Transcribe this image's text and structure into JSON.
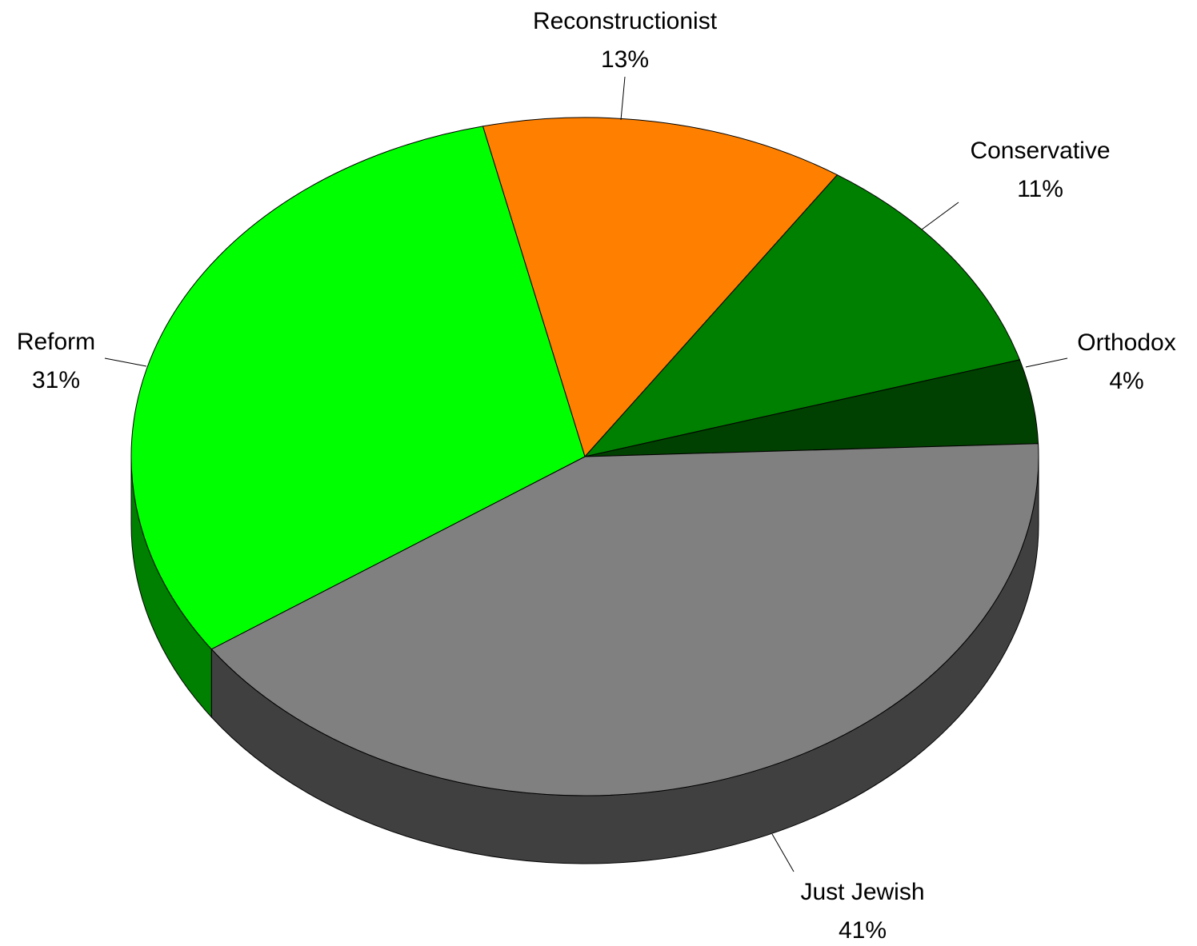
{
  "chart_data": {
    "type": "pie",
    "style": "3d",
    "title": "",
    "slices": [
      {
        "label": "Reconstructionist",
        "value": 13,
        "value_label": "13%",
        "color": "#FF8000"
      },
      {
        "label": "Conservative",
        "value": 11,
        "value_label": "11%",
        "color": "#008000"
      },
      {
        "label": "Orthodox",
        "value": 4,
        "value_label": "4%",
        "color": "#004000"
      },
      {
        "label": "Just Jewish",
        "value": 41,
        "value_label": "41%",
        "color": "#808080"
      },
      {
        "label": "Reform",
        "value": 31,
        "value_label": "31%",
        "color": "#00FF00"
      }
    ],
    "legend": "none",
    "label_position": "outside-with-leader-lines"
  }
}
